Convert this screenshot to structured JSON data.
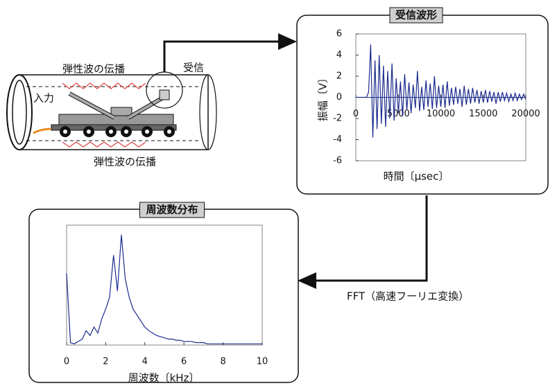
{
  "diagram": {
    "wave_label_top": "弾性波の伝播",
    "wave_label_bottom": "弾性波の伝播",
    "receive": "受信",
    "input": "入力",
    "fft": "FFT（高速フーリエ変換）"
  },
  "chart_data": [
    {
      "type": "line",
      "title": "受信波形",
      "y_label": "振幅〔V〕",
      "x_label": "時間〔μsec〕",
      "x": [
        0,
        250,
        500,
        750,
        1000,
        1250,
        1500,
        1750,
        2000,
        2250,
        2500,
        2750,
        3000,
        3250,
        3500,
        3750,
        4000,
        4250,
        4500,
        4750,
        5000,
        5250,
        5500,
        5750,
        6000,
        6250,
        6500,
        6750,
        7000,
        7250,
        7500,
        7750,
        8000,
        8250,
        8500,
        8750,
        9000,
        9250,
        9500,
        9750,
        10000,
        10250,
        10500,
        10750,
        11000,
        11250,
        11500,
        11750,
        12000,
        12250,
        12500,
        12750,
        13000,
        13250,
        13500,
        13750,
        14000,
        14250,
        14500,
        14750,
        15000,
        15250,
        15500,
        15750,
        16000,
        16250,
        16500,
        16750,
        17000,
        17250,
        17500,
        17750,
        18000,
        18250,
        18500,
        18750,
        19000,
        19250,
        19500,
        19750,
        20000
      ],
      "series": [
        {
          "color": "#1a2a8c",
          "values": [
            0,
            0,
            0,
            0,
            0,
            0,
            0.5,
            5.0,
            -3.8,
            3.5,
            -3.0,
            4.0,
            -2.5,
            3.0,
            -2.8,
            2.5,
            -2.0,
            3.2,
            -2.2,
            1.8,
            -1.5,
            1.5,
            -1.8,
            2.2,
            -1.2,
            1.4,
            -1.5,
            1.2,
            -1.0,
            2.5,
            -1.3,
            1.0,
            -1.2,
            1.6,
            -0.9,
            1.3,
            -1.1,
            2.0,
            -1.0,
            1.1,
            -0.9,
            1.2,
            -1.0,
            1.5,
            -0.8,
            0.9,
            -0.7,
            1.0,
            -0.6,
            0.8,
            -0.9,
            1.1,
            -0.7,
            0.8,
            -0.6,
            0.9,
            -0.5,
            0.7,
            -0.6,
            0.6,
            -0.5,
            0.7,
            -0.5,
            0.6,
            -0.4,
            0.5,
            -0.6,
            0.5,
            -0.4,
            0.5,
            -0.3,
            0.4,
            -0.4,
            0.3,
            -0.3,
            0.4,
            -0.3,
            0.3,
            -0.2,
            0.3,
            -0.2
          ]
        }
      ],
      "xlim": [
        0,
        20000
      ],
      "ylim": [
        -6,
        6
      ],
      "xticks": [
        0,
        5000,
        10000,
        15000,
        20000
      ],
      "yticks": [
        -6,
        -4,
        -2,
        0,
        2,
        4,
        6
      ]
    },
    {
      "type": "line",
      "title": "周波数分布",
      "x_label": "周波数〔kHz〕",
      "x": [
        0,
        0.2,
        0.4,
        0.6,
        0.8,
        1.0,
        1.2,
        1.4,
        1.6,
        1.8,
        2.0,
        2.2,
        2.4,
        2.6,
        2.8,
        3.0,
        3.2,
        3.4,
        3.6,
        3.8,
        4.0,
        4.2,
        4.4,
        4.6,
        4.8,
        5.0,
        5.2,
        5.4,
        5.6,
        5.8,
        6.0,
        6.2,
        6.4,
        6.6,
        6.8,
        7.0,
        7.2,
        7.4,
        7.6,
        7.8,
        8.0,
        8.2,
        8.4,
        8.6,
        8.8,
        9.0,
        9.2,
        9.4,
        9.6,
        9.8,
        10.0
      ],
      "series": [
        {
          "color": "#1a2a8c",
          "values": [
            0.6,
            0.02,
            0.01,
            0.03,
            0.05,
            0.12,
            0.08,
            0.15,
            0.1,
            0.22,
            0.3,
            0.4,
            0.75,
            0.45,
            0.92,
            0.55,
            0.4,
            0.3,
            0.25,
            0.2,
            0.15,
            0.12,
            0.1,
            0.08,
            0.07,
            0.06,
            0.05,
            0.05,
            0.04,
            0.04,
            0.03,
            0.03,
            0.03,
            0.02,
            0.02,
            0.02,
            0.01,
            0.01,
            0.01,
            0.01,
            0.01,
            0.01,
            0.01,
            0.01,
            0.01,
            0.01,
            0.01,
            0.01,
            0.01,
            0.01,
            0.01
          ]
        }
      ],
      "xlim": [
        0,
        10
      ],
      "ylim": [
        0,
        1
      ],
      "xticks": [
        0,
        2,
        4,
        6,
        8,
        10
      ]
    }
  ]
}
